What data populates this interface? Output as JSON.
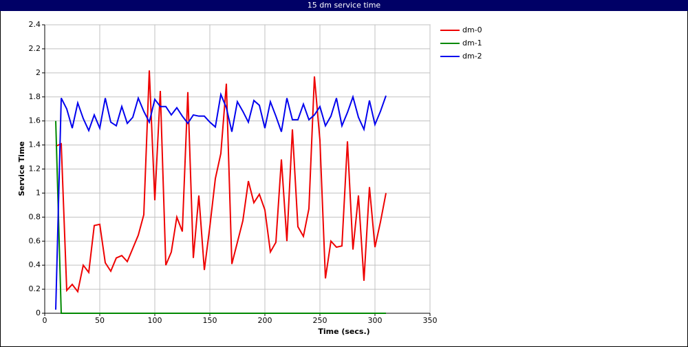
{
  "chart_data": {
    "type": "line",
    "title": "15 dm service time",
    "x_label": "Time (secs.)",
    "y_label": "Service Time",
    "x": [
      10,
      15,
      20,
      25,
      30,
      35,
      40,
      45,
      50,
      55,
      60,
      65,
      70,
      75,
      80,
      85,
      90,
      95,
      100,
      105,
      110,
      115,
      120,
      125,
      130,
      135,
      140,
      145,
      150,
      155,
      160,
      165,
      170,
      175,
      180,
      185,
      190,
      195,
      200,
      205,
      210,
      215,
      220,
      225,
      230,
      235,
      240,
      245,
      250,
      255,
      260,
      265,
      270,
      275,
      280,
      285,
      290,
      295,
      300,
      305,
      310
    ],
    "series": [
      {
        "name": "dm-0",
        "color": "#ee0000",
        "values": [
          1.39,
          1.41,
          0.19,
          0.24,
          0.18,
          0.4,
          0.34,
          0.73,
          0.74,
          0.42,
          0.35,
          0.46,
          0.48,
          0.43,
          0.54,
          0.65,
          0.82,
          2.02,
          0.94,
          1.85,
          0.4,
          0.51,
          0.8,
          0.68,
          1.84,
          0.46,
          0.98,
          0.36,
          0.72,
          1.12,
          1.33,
          1.91,
          0.41,
          0.59,
          0.77,
          1.1,
          0.92,
          0.99,
          0.86,
          0.51,
          0.59,
          1.28,
          0.6,
          1.53,
          0.72,
          0.64,
          0.87,
          1.97,
          1.44,
          0.29,
          0.6,
          0.55,
          0.56,
          1.43,
          0.53,
          0.98,
          0.27,
          1.05,
          0.55,
          0.76,
          1.0
        ]
      },
      {
        "name": "dm-1",
        "color": "#008800",
        "values": [
          1.6,
          0,
          0,
          0,
          0,
          0,
          0,
          0,
          0,
          0,
          0,
          0,
          0,
          0,
          0,
          0,
          0,
          0,
          0,
          0,
          0,
          0,
          0,
          0,
          0,
          0,
          0,
          0,
          0,
          0,
          0,
          0,
          0,
          0,
          0,
          0,
          0,
          0,
          0,
          0,
          0,
          0,
          0,
          0,
          0,
          0,
          0,
          0,
          0,
          0,
          0,
          0,
          0,
          0,
          0,
          0,
          0,
          0,
          0,
          0,
          0
        ]
      },
      {
        "name": "dm-2",
        "color": "#0000ee",
        "values": [
          0.03,
          1.79,
          1.7,
          1.54,
          1.75,
          1.62,
          1.52,
          1.65,
          1.54,
          1.79,
          1.59,
          1.56,
          1.72,
          1.58,
          1.63,
          1.79,
          1.68,
          1.59,
          1.78,
          1.72,
          1.72,
          1.65,
          1.71,
          1.64,
          1.58,
          1.65,
          1.64,
          1.64,
          1.59,
          1.55,
          1.82,
          1.71,
          1.51,
          1.76,
          1.68,
          1.59,
          1.77,
          1.73,
          1.54,
          1.76,
          1.64,
          1.51,
          1.79,
          1.61,
          1.61,
          1.74,
          1.61,
          1.65,
          1.72,
          1.56,
          1.64,
          1.79,
          1.56,
          1.67,
          1.8,
          1.63,
          1.53,
          1.77,
          1.57,
          1.68,
          1.81
        ]
      }
    ],
    "xlim": [
      0,
      350
    ],
    "xticks": [
      0,
      50,
      100,
      150,
      200,
      250,
      300,
      350
    ],
    "ylim": [
      0,
      2.4
    ],
    "yticks": [
      0,
      0.2,
      0.4,
      0.6,
      0.8,
      1,
      1.2,
      1.4,
      1.6,
      1.8,
      2,
      2.2,
      2.4
    ],
    "grid": true,
    "legend": "top-right"
  }
}
